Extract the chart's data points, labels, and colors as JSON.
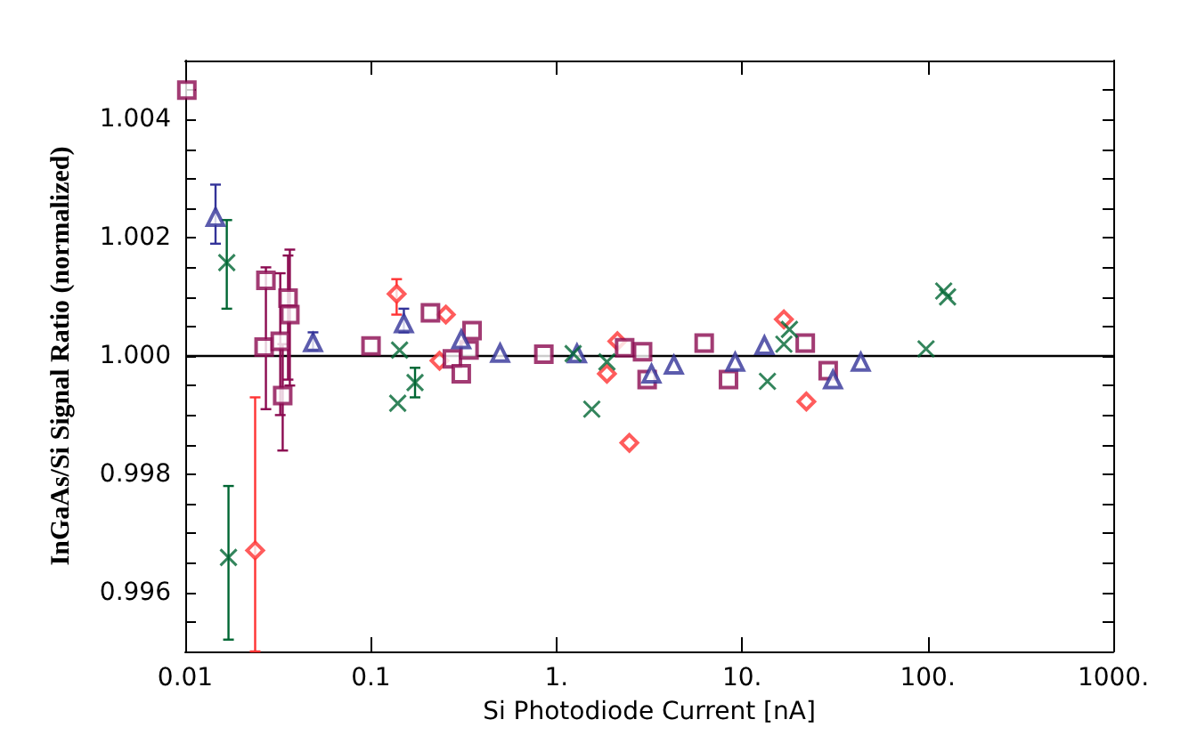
{
  "chart_data": {
    "type": "scatter",
    "xlabel": "Si Photodiode Current [nA]",
    "ylabel": "InGaAs/Si Signal Ratio (normalized)",
    "log": "x",
    "xlim": [
      0.01,
      1000
    ],
    "xticks": [
      {
        "value": 0.01,
        "label": "0.01"
      },
      {
        "value": 0.1,
        "label": "0.1"
      },
      {
        "value": 1,
        "label": "1."
      },
      {
        "value": 10,
        "label": "10."
      },
      {
        "value": 100,
        "label": "100."
      },
      {
        "value": 1000,
        "label": "1000."
      }
    ],
    "ylim": [
      0.995,
      1.005
    ],
    "yticks": [
      {
        "value": 0.9955,
        "label": null
      },
      {
        "value": 0.996,
        "label": "0.996"
      },
      {
        "value": 0.9965,
        "label": null
      },
      {
        "value": 0.997,
        "label": null
      },
      {
        "value": 0.9975,
        "label": null
      },
      {
        "value": 0.998,
        "label": "0.998"
      },
      {
        "value": 0.9985,
        "label": null
      },
      {
        "value": 0.999,
        "label": null
      },
      {
        "value": 0.9995,
        "label": null
      },
      {
        "value": 1.0,
        "label": "1.000"
      },
      {
        "value": 1.0005,
        "label": null
      },
      {
        "value": 1.001,
        "label": null
      },
      {
        "value": 1.0015,
        "label": null
      },
      {
        "value": 1.002,
        "label": "1.002"
      },
      {
        "value": 1.0025,
        "label": null
      },
      {
        "value": 1.003,
        "label": null
      },
      {
        "value": 1.0035,
        "label": null
      },
      {
        "value": 1.004,
        "label": "1.004"
      },
      {
        "value": 1.0045,
        "label": null
      }
    ],
    "grid": false,
    "ref_lines": [
      {
        "axis": "y",
        "value": 1.0,
        "color": "#000000"
      }
    ],
    "series": [
      {
        "color": "#ff3333",
        "marker": "diamond",
        "x": [
          0.0238,
          0.1377,
          0.2535,
          0.2344,
          1.87,
          2.13,
          2.47,
          16.8,
          22.2
        ],
        "values": [
          0.99671,
          1.00105,
          1.0007,
          0.99992,
          0.9997,
          1.00025,
          0.99853,
          1.00062,
          0.99923
        ],
        "errors": [
          [
            0.995,
            0.9993
          ],
          [
            1.0007,
            1.0013
          ],
          null,
          null,
          null,
          null,
          null,
          null,
          null
        ]
      },
      {
        "color": "#8b0a50",
        "marker": "square",
        "x": [
          0.0102,
          0.0272,
          0.0266,
          0.0325,
          0.0335,
          0.0358,
          0.0366,
          0.1002,
          0.2095,
          0.275,
          0.307,
          0.338,
          0.351,
          0.855,
          2.33,
          2.91,
          3.08,
          6.25,
          8.45,
          21.9,
          29.1
        ],
        "values": [
          1.0045,
          1.00128,
          1.00015,
          1.00025,
          0.99933,
          1.00098,
          1.0007,
          1.00017,
          1.00073,
          0.99995,
          0.9997,
          1.0001,
          1.00043,
          1.00003,
          1.00014,
          1.00007,
          0.9996,
          1.00022,
          0.9996,
          1.00022,
          0.99975
        ],
        "errors": [
          null,
          [
            0.9991,
            1.0015
          ],
          null,
          [
            0.999,
            1.0014
          ],
          [
            0.9984,
            1.0002
          ],
          [
            0.9996,
            1.0017
          ],
          [
            0.9995,
            1.0018
          ],
          null,
          null,
          null,
          null,
          null,
          null,
          null,
          null,
          null,
          null,
          null,
          null,
          null,
          null
        ]
      },
      {
        "color": "#333399",
        "marker": "triangle",
        "x": [
          0.01456,
          0.0488,
          0.1506,
          0.307,
          0.497,
          1.29,
          3.25,
          4.29,
          9.18,
          13.2,
          30.9,
          43.6
        ],
        "values": [
          1.00235,
          1.00023,
          1.00055,
          1.00028,
          1.00005,
          1.00004,
          0.9997,
          0.99985,
          0.9999,
          1.00018,
          0.9996,
          0.9999
        ],
        "errors": [
          [
            1.0019,
            1.0029
          ],
          [
            1.0001,
            1.0004
          ],
          [
            1.0004,
            1.0008
          ],
          null,
          null,
          null,
          null,
          null,
          null,
          null,
          null,
          null
        ]
      },
      {
        "color": "#006633",
        "marker": "cross",
        "x": [
          0.01674,
          0.0171,
          0.1428,
          0.1396,
          0.173,
          1.23,
          1.55,
          1.87,
          13.7,
          16.8,
          18.0,
          98,
          122,
          128
        ],
        "values": [
          1.00158,
          0.99659,
          1.0001,
          0.9992,
          0.99955,
          1.00004,
          0.9991,
          0.9999,
          0.99957,
          1.0002,
          1.00045,
          1.00012,
          1.0011,
          1.001
        ],
        "errors": [
          [
            1.0008,
            1.0023
          ],
          [
            0.9952,
            0.9978
          ],
          null,
          null,
          [
            0.9993,
            0.9998
          ],
          null,
          null,
          null,
          null,
          null,
          null,
          null,
          null,
          null
        ]
      }
    ]
  }
}
